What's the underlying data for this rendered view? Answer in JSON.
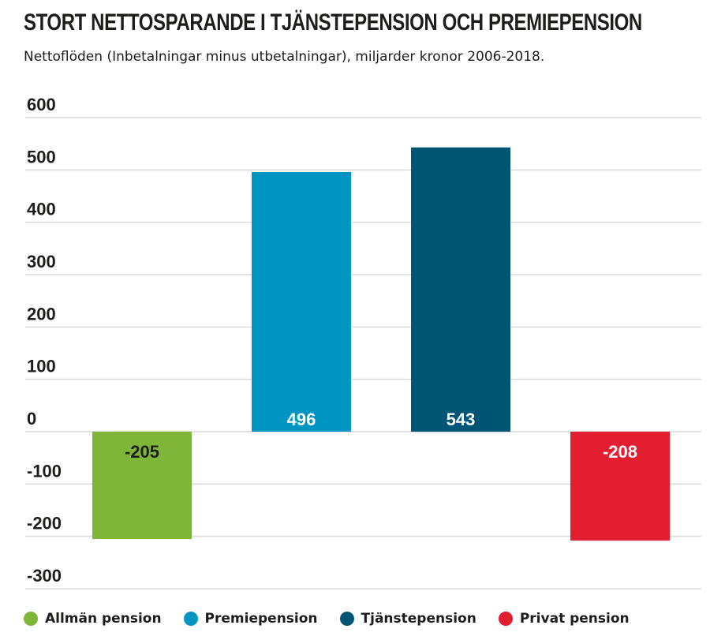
{
  "header": {
    "title": "STORT NETTOSPARANDE I TJÄNSTEPENSION OCH PREMIEPENSION",
    "subtitle": "Nettoflöden (Inbetalningar minus utbetalningar), miljarder kronor 2006-2018."
  },
  "chart_data": {
    "type": "bar",
    "title": "STORT NETTOSPARANDE I TJÄNSTEPENSION OCH PREMIEPENSION",
    "subtitle": "Nettoflöden (Inbetalningar minus utbetalningar), miljarder kronor 2006-2018.",
    "categories": [
      "Allmän pension",
      "Premiepension",
      "Tjänstepension",
      "Privat pension"
    ],
    "values": [
      -205,
      496,
      543,
      -208
    ],
    "data_labels": [
      "-205",
      "496",
      "543",
      "-208"
    ],
    "colors": [
      "#7fb539",
      "#0095c3",
      "#005474",
      "#e31e30"
    ],
    "label_colors": [
      "#1d1d1b",
      "#ffffff",
      "#ffffff",
      "#ffffff"
    ],
    "yticks": [
      600,
      500,
      400,
      300,
      200,
      100,
      0,
      -100,
      -200,
      -300
    ],
    "ytick_labels": [
      "600",
      "500",
      "400",
      "300",
      "200",
      "100",
      "0",
      "-100",
      "-200",
      "-300"
    ],
    "ylim": [
      -300,
      600
    ],
    "xlabel": "",
    "ylabel": "",
    "grid": true,
    "legend_position": "bottom"
  }
}
